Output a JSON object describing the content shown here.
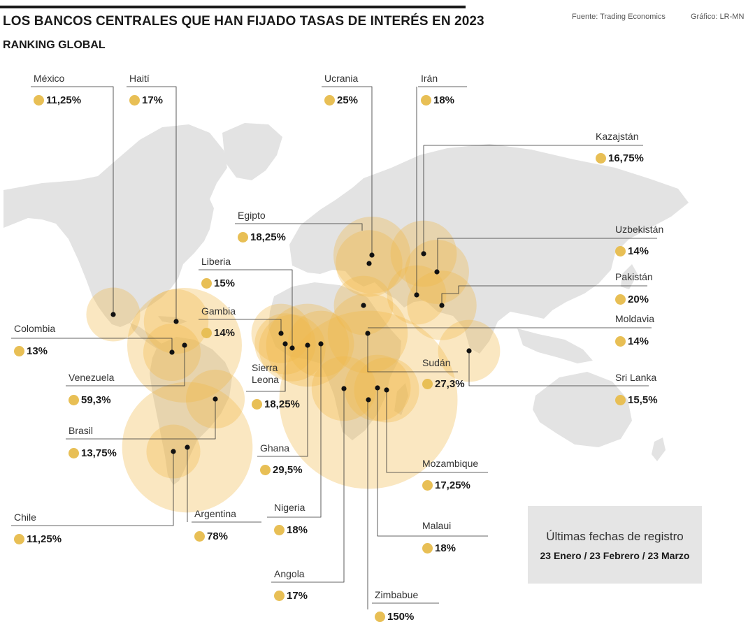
{
  "header": {
    "title": "LOS BANCOS CENTRALES QUE HAN FIJADO TASAS DE INTERÉS EN 2023",
    "subtitle": "RANKING GLOBAL",
    "source": "Fuente: Trading Economics",
    "credit": "Gráfico: LR-MN"
  },
  "colors": {
    "marker": "#e8bf55",
    "bubble": "#f0b84a",
    "land": "#e3e3e3",
    "leader": "#333333",
    "infobox_bg": "#e5e5e5"
  },
  "countries": [
    {
      "name": "México",
      "rate": "11,25%",
      "value": 11.25
    },
    {
      "name": "Haití",
      "rate": "17%",
      "value": 17
    },
    {
      "name": "Colombia",
      "rate": "13%",
      "value": 13
    },
    {
      "name": "Venezuela",
      "rate": "59,3%",
      "value": 59.3
    },
    {
      "name": "Brasil",
      "rate": "13,75%",
      "value": 13.75
    },
    {
      "name": "Chile",
      "rate": "11,25%",
      "value": 11.25
    },
    {
      "name": "Argentina",
      "rate": "78%",
      "value": 78
    },
    {
      "name": "Liberia",
      "rate": "15%",
      "value": 15
    },
    {
      "name": "Gambia",
      "rate": "14%",
      "value": 14
    },
    {
      "name": "Egipto",
      "rate": "18,25%",
      "value": 18.25
    },
    {
      "name": "Sierra Leona",
      "rate": "18,25%",
      "value": 18.25
    },
    {
      "name": "Ghana",
      "rate": "29,5%",
      "value": 29.5
    },
    {
      "name": "Nigeria",
      "rate": "18%",
      "value": 18
    },
    {
      "name": "Angola",
      "rate": "17%",
      "value": 17
    },
    {
      "name": "Zimbabue",
      "rate": "150%",
      "value": 150
    },
    {
      "name": "Ucrania",
      "rate": "25%",
      "value": 25
    },
    {
      "name": "Irán",
      "rate": "18%",
      "value": 18
    },
    {
      "name": "Kazajstán",
      "rate": "16,75%",
      "value": 16.75
    },
    {
      "name": "Uzbekistán",
      "rate": "14%",
      "value": 14
    },
    {
      "name": "Pakistán",
      "rate": "20%",
      "value": 20
    },
    {
      "name": "Moldavia",
      "rate": "14%",
      "value": 14
    },
    {
      "name": "Sri Lanka",
      "rate": "15,5%",
      "value": 15.5
    },
    {
      "name": "Sudán",
      "rate": "27,3%",
      "value": 27.3
    },
    {
      "name": "Mozambique",
      "rate": "17,25%",
      "value": 17.25
    },
    {
      "name": "Malaui",
      "rate": "18%",
      "value": 18
    }
  ],
  "infobox": {
    "title": "Últimas fechas de registro",
    "dates": "23 Enero / 23 Febrero / 23 Marzo"
  }
}
